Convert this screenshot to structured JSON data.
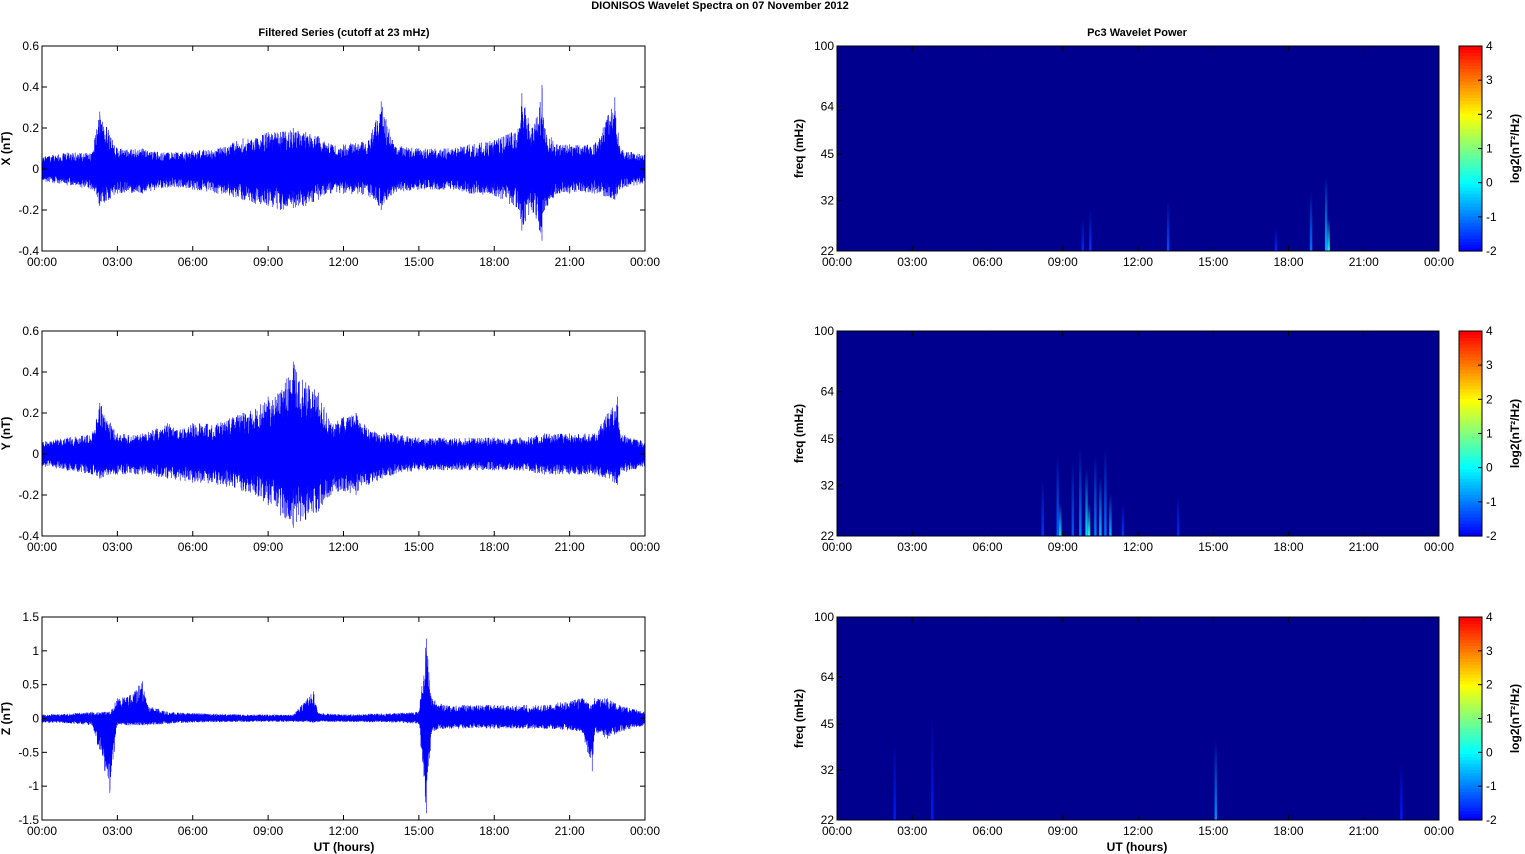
{
  "figure": {
    "title": "DIONISOS Wavelet Spectra on 07 November  2012",
    "left_title": "Filtered Series (cutoff at 23 mHz)",
    "right_title": "Pc3 Wavelet Power",
    "xlabel": "UT (hours)"
  },
  "colors": {
    "trace": "#0000ff",
    "power_background": "#00008f"
  },
  "chart_data": [
    {
      "type": "line",
      "name": "X (nT)",
      "ylabel": "X (nT)",
      "ylim": [
        -0.4,
        0.6
      ],
      "yticks": [
        -0.4,
        -0.2,
        0,
        0.2,
        0.4,
        0.6
      ],
      "xlim": [
        0,
        24
      ],
      "xticks": [
        "00:00",
        "03:00",
        "06:00",
        "09:00",
        "12:00",
        "15:00",
        "18:00",
        "21:00",
        "00:00"
      ],
      "grid": false,
      "envelope": {
        "hours": [
          0,
          1,
          2,
          2.3,
          3,
          4,
          5,
          6,
          7,
          8,
          8.5,
          9,
          9.5,
          10,
          10.5,
          11,
          11.5,
          12,
          13,
          13.5,
          14,
          15,
          16,
          17,
          18,
          19,
          19.1,
          19.5,
          19.8,
          19.9,
          20,
          20.5,
          21,
          22,
          22.8,
          23,
          24
        ],
        "upper": [
          0.06,
          0.08,
          0.08,
          0.28,
          0.1,
          0.1,
          0.08,
          0.09,
          0.1,
          0.15,
          0.15,
          0.18,
          0.18,
          0.2,
          0.18,
          0.16,
          0.12,
          0.12,
          0.14,
          0.33,
          0.12,
          0.1,
          0.1,
          0.12,
          0.14,
          0.2,
          0.37,
          0.2,
          0.3,
          0.41,
          0.2,
          0.12,
          0.12,
          0.12,
          0.35,
          0.1,
          0.07
        ],
        "lower": [
          -0.06,
          -0.08,
          -0.1,
          -0.18,
          -0.12,
          -0.12,
          -0.09,
          -0.1,
          -0.12,
          -0.15,
          -0.17,
          -0.18,
          -0.2,
          -0.19,
          -0.18,
          -0.15,
          -0.12,
          -0.12,
          -0.13,
          -0.2,
          -0.12,
          -0.1,
          -0.1,
          -0.12,
          -0.13,
          -0.2,
          -0.3,
          -0.2,
          -0.3,
          -0.35,
          -0.2,
          -0.12,
          -0.12,
          -0.12,
          -0.15,
          -0.1,
          -0.07
        ]
      }
    },
    {
      "type": "line",
      "name": "Y (nT)",
      "ylabel": "Y (nT)",
      "ylim": [
        -0.4,
        0.6
      ],
      "yticks": [
        -0.4,
        -0.2,
        0,
        0.2,
        0.4,
        0.6
      ],
      "xlim": [
        0,
        24
      ],
      "xticks": [
        "00:00",
        "03:00",
        "06:00",
        "09:00",
        "12:00",
        "15:00",
        "18:00",
        "21:00",
        "00:00"
      ],
      "grid": false,
      "envelope": {
        "hours": [
          0,
          1,
          2,
          2.3,
          3,
          4,
          5,
          5.5,
          6,
          7,
          8,
          8.5,
          9,
          9.5,
          10,
          10.5,
          11,
          11.5,
          12,
          12.5,
          13,
          14,
          15,
          16,
          17,
          18,
          19,
          20,
          21,
          22,
          22.9,
          23,
          24
        ],
        "upper": [
          0.06,
          0.08,
          0.1,
          0.25,
          0.1,
          0.1,
          0.15,
          0.12,
          0.15,
          0.15,
          0.2,
          0.22,
          0.28,
          0.3,
          0.45,
          0.35,
          0.3,
          0.15,
          0.18,
          0.2,
          0.12,
          0.1,
          0.08,
          0.08,
          0.08,
          0.08,
          0.08,
          0.1,
          0.1,
          0.1,
          0.28,
          0.1,
          0.06
        ],
        "lower": [
          -0.06,
          -0.08,
          -0.1,
          -0.12,
          -0.1,
          -0.1,
          -0.12,
          -0.13,
          -0.14,
          -0.15,
          -0.18,
          -0.2,
          -0.25,
          -0.3,
          -0.36,
          -0.32,
          -0.28,
          -0.2,
          -0.18,
          -0.2,
          -0.15,
          -0.1,
          -0.08,
          -0.08,
          -0.08,
          -0.08,
          -0.08,
          -0.1,
          -0.1,
          -0.1,
          -0.15,
          -0.1,
          -0.06
        ]
      }
    },
    {
      "type": "line",
      "name": "Z (nT)",
      "ylabel": "Z (nT)",
      "ylim": [
        -1.5,
        1.5
      ],
      "yticks": [
        -1.5,
        -1,
        -0.5,
        0,
        0.5,
        1,
        1.5
      ],
      "xlim": [
        0,
        24
      ],
      "xticks": [
        "00:00",
        "03:00",
        "06:00",
        "09:00",
        "12:00",
        "15:00",
        "18:00",
        "21:00",
        "00:00"
      ],
      "grid": false,
      "envelope": {
        "hours": [
          0,
          1,
          2,
          2.7,
          3,
          3.5,
          4,
          4.2,
          5,
          6,
          8,
          10,
          10.8,
          11,
          12,
          14,
          15,
          15.3,
          15.5,
          16,
          18,
          20,
          21.5,
          21.9,
          22,
          22.5,
          23,
          24
        ],
        "upper": [
          0.06,
          0.07,
          0.1,
          0.1,
          0.3,
          0.35,
          0.55,
          0.2,
          0.1,
          0.08,
          0.06,
          0.06,
          0.4,
          0.08,
          0.06,
          0.08,
          0.1,
          1.18,
          0.3,
          0.2,
          0.2,
          0.2,
          0.3,
          0.2,
          0.3,
          0.3,
          0.2,
          0.1
        ],
        "lower": [
          -0.06,
          -0.07,
          -0.1,
          -1.1,
          -0.1,
          -0.1,
          -0.1,
          -0.1,
          -0.08,
          -0.06,
          -0.05,
          -0.05,
          -0.06,
          -0.05,
          -0.05,
          -0.06,
          -0.08,
          -1.4,
          -0.2,
          -0.15,
          -0.15,
          -0.15,
          -0.2,
          -0.78,
          -0.2,
          -0.3,
          -0.2,
          -0.1
        ]
      }
    },
    {
      "type": "heatmap",
      "ylabel": "freq (mHz)",
      "ylim": [
        22,
        100
      ],
      "yscale": "log",
      "yticks": [
        22,
        32,
        45,
        64,
        100
      ],
      "xlim": [
        0,
        24
      ],
      "xticks": [
        "00:00",
        "03:00",
        "06:00",
        "09:00",
        "12:00",
        "15:00",
        "18:00",
        "21:00",
        "00:00"
      ],
      "colorbar": {
        "label": "log2(nT²/Hz)",
        "range": [
          -2,
          4
        ],
        "ticks": [
          -2,
          -1,
          0,
          1,
          2,
          3,
          4
        ]
      },
      "features": [
        {
          "hour": 9.8,
          "fmax": 28,
          "level": -1.7
        },
        {
          "hour": 10.1,
          "fmax": 30,
          "level": -1.6
        },
        {
          "hour": 13.2,
          "fmax": 32,
          "level": -1.4
        },
        {
          "hour": 17.5,
          "fmax": 26,
          "level": -1.7
        },
        {
          "hour": 18.9,
          "fmax": 34,
          "level": -1.1
        },
        {
          "hour": 19.5,
          "fmax": 38,
          "level": -0.6
        },
        {
          "hour": 19.6,
          "fmax": 28,
          "level": 0.2
        }
      ]
    },
    {
      "type": "heatmap",
      "ylabel": "freq (mHz)",
      "ylim": [
        22,
        100
      ],
      "yscale": "log",
      "yticks": [
        22,
        32,
        45,
        64,
        100
      ],
      "xlim": [
        0,
        24
      ],
      "xticks": [
        "00:00",
        "03:00",
        "06:00",
        "09:00",
        "12:00",
        "15:00",
        "18:00",
        "21:00",
        "00:00"
      ],
      "colorbar": {
        "label": "log2(nT²/Hz)",
        "range": [
          -2,
          4
        ],
        "ticks": [
          -2,
          -1,
          0,
          1,
          2,
          3,
          4
        ]
      },
      "features": [
        {
          "hour": 8.2,
          "fmax": 34,
          "level": -1.6
        },
        {
          "hour": 8.8,
          "fmax": 40,
          "level": -1.2
        },
        {
          "hour": 8.9,
          "fmax": 28,
          "level": -0.2
        },
        {
          "hour": 9.4,
          "fmax": 38,
          "level": -1.3
        },
        {
          "hour": 9.7,
          "fmax": 42,
          "level": -1.0
        },
        {
          "hour": 9.95,
          "fmax": 36,
          "level": -0.2
        },
        {
          "hour": 10.05,
          "fmax": 28,
          "level": 0.3
        },
        {
          "hour": 10.3,
          "fmax": 40,
          "level": -1.0
        },
        {
          "hour": 10.5,
          "fmax": 34,
          "level": -0.5
        },
        {
          "hour": 10.7,
          "fmax": 42,
          "level": -1.1
        },
        {
          "hour": 10.9,
          "fmax": 30,
          "level": -0.6
        },
        {
          "hour": 11.4,
          "fmax": 28,
          "level": -1.6
        },
        {
          "hour": 13.6,
          "fmax": 30,
          "level": -1.7
        }
      ]
    },
    {
      "type": "heatmap",
      "ylabel": "freq (mHz)",
      "ylim": [
        22,
        100
      ],
      "yscale": "log",
      "yticks": [
        22,
        32,
        45,
        64,
        100
      ],
      "xlim": [
        0,
        24
      ],
      "xticks": [
        "00:00",
        "03:00",
        "06:00",
        "09:00",
        "12:00",
        "15:00",
        "18:00",
        "21:00",
        "00:00"
      ],
      "colorbar": {
        "label": "log2(nT²/Hz)",
        "range": [
          -2,
          4
        ],
        "ticks": [
          -2,
          -1,
          0,
          1,
          2,
          3,
          4
        ]
      },
      "features": [
        {
          "hour": 2.3,
          "fmax": 40,
          "level": -1.8
        },
        {
          "hour": 3.8,
          "fmax": 48,
          "level": -1.8
        },
        {
          "hour": 15.1,
          "fmax": 40,
          "level": -0.9
        },
        {
          "hour": 22.5,
          "fmax": 34,
          "level": -1.8
        }
      ]
    }
  ]
}
